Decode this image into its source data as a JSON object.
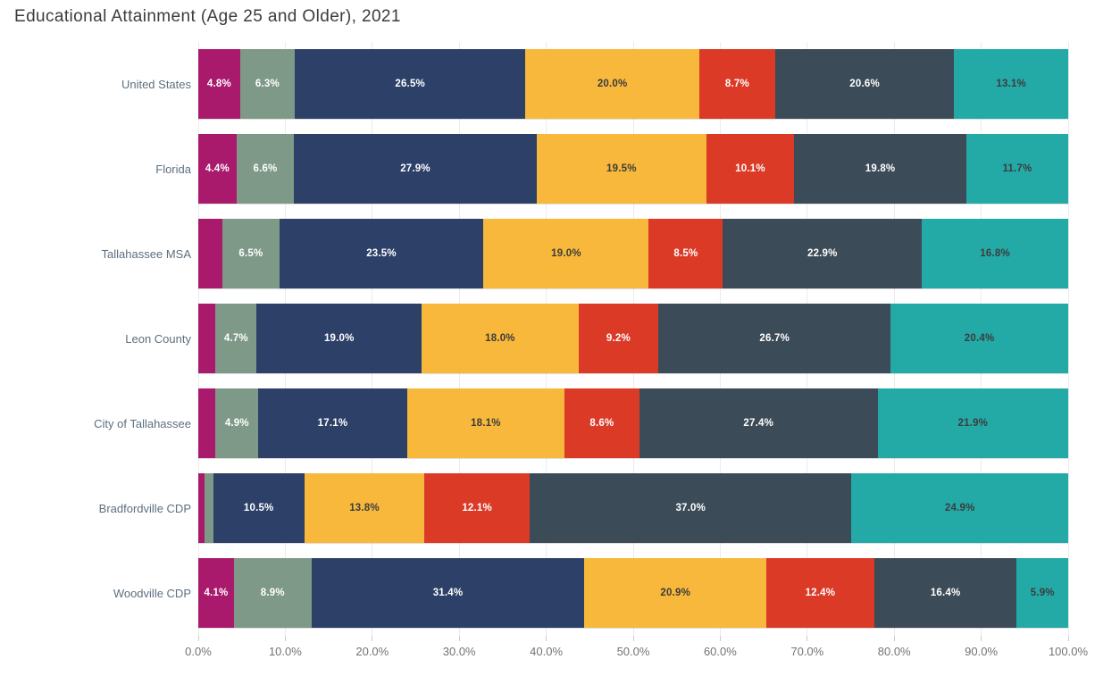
{
  "title": "Educational Attainment (Age 25 and Older), 2021",
  "colors": {
    "background": "#ffffff",
    "title_text": "#3c3c3c",
    "category_label_text": "#5e6f7f",
    "axis_label_text": "#737373",
    "gridline": "#ebebeb"
  },
  "chart_data": {
    "type": "bar",
    "orientation": "horizontal",
    "stacked": true,
    "title": "Educational Attainment (Age 25 and Older), 2021",
    "xlabel": "",
    "ylabel": "",
    "xlim": [
      0,
      100
    ],
    "grid": true,
    "legend": false,
    "x_ticks": [
      "0.0%",
      "10.0%",
      "20.0%",
      "30.0%",
      "40.0%",
      "50.0%",
      "60.0%",
      "70.0%",
      "80.0%",
      "90.0%",
      "100.0%"
    ],
    "categories": [
      "United States",
      "Florida",
      "Tallahassee MSA",
      "Leon County",
      "City of Tallahassee",
      "Bradfordville CDP",
      "Woodville CDP"
    ],
    "series": [
      {
        "name": "segment-1-magenta",
        "color": "#a9196c",
        "label_color": "#ffffff",
        "values": [
          4.8,
          4.4,
          2.8,
          2.0,
          2.0,
          0.7,
          4.1
        ],
        "labels": [
          "4.8%",
          "4.4%",
          "",
          "",
          "",
          "",
          "4.1%"
        ]
      },
      {
        "name": "segment-2-sage",
        "color": "#7e9988",
        "label_color": "#ffffff",
        "values": [
          6.3,
          6.6,
          6.5,
          4.7,
          4.9,
          1.0,
          8.9
        ],
        "labels": [
          "6.3%",
          "6.6%",
          "6.5%",
          "4.7%",
          "4.9%",
          "",
          "8.9%"
        ]
      },
      {
        "name": "segment-3-navy",
        "color": "#2c4068",
        "label_color": "#ffffff",
        "values": [
          26.5,
          27.9,
          23.5,
          19.0,
          17.1,
          10.5,
          31.4
        ],
        "labels": [
          "26.5%",
          "27.9%",
          "23.5%",
          "19.0%",
          "17.1%",
          "10.5%",
          "31.4%"
        ]
      },
      {
        "name": "segment-4-amber",
        "color": "#f7b83c",
        "label_color": "#3c3c3c",
        "values": [
          20.0,
          19.5,
          19.0,
          18.0,
          18.1,
          13.8,
          20.9
        ],
        "labels": [
          "20.0%",
          "19.5%",
          "19.0%",
          "18.0%",
          "18.1%",
          "13.8%",
          "20.9%"
        ]
      },
      {
        "name": "segment-5-red",
        "color": "#db3a27",
        "label_color": "#ffffff",
        "values": [
          8.7,
          10.1,
          8.5,
          9.2,
          8.6,
          12.1,
          12.4
        ],
        "labels": [
          "8.7%",
          "10.1%",
          "8.5%",
          "9.2%",
          "8.6%",
          "12.1%",
          "12.4%"
        ]
      },
      {
        "name": "segment-6-charcoal",
        "color": "#3c4b58",
        "label_color": "#ffffff",
        "values": [
          20.6,
          19.8,
          22.9,
          26.7,
          27.4,
          37.0,
          16.4
        ],
        "labels": [
          "20.6%",
          "19.8%",
          "22.9%",
          "26.7%",
          "27.4%",
          "37.0%",
          "16.4%"
        ]
      },
      {
        "name": "segment-7-teal",
        "color": "#23aaa7",
        "label_color": "#3c3c3c",
        "values": [
          13.1,
          11.7,
          16.8,
          20.4,
          21.9,
          24.9,
          5.9
        ],
        "labels": [
          "13.1%",
          "11.7%",
          "16.8%",
          "20.4%",
          "21.9%",
          "24.9%",
          "5.9%"
        ]
      }
    ]
  }
}
